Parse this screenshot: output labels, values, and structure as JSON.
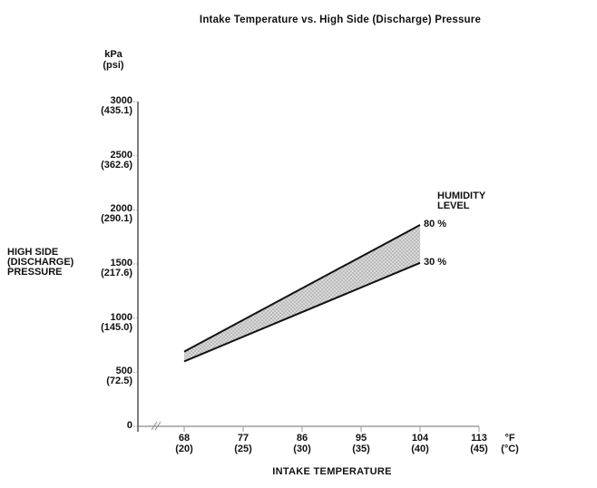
{
  "chart_data": {
    "type": "area",
    "title": "Intake Temperature vs. High Side (Discharge) Pressure",
    "xlabel": "INTAKE TEMPERATURE",
    "ylabel_lines": [
      "HIGH SIDE",
      "(DISCHARGE)",
      "PRESSURE"
    ],
    "y_axis_unit_lines": [
      "kPa",
      "(psi)"
    ],
    "x_axis_unit_lines": [
      "°F",
      "(°C)"
    ],
    "xlim": [
      68,
      113
    ],
    "ylim": [
      0,
      3000
    ],
    "grid": false,
    "axis_break_before_first_x_tick": true,
    "x_ticks": [
      {
        "value": 68,
        "primary": "68",
        "secondary": "(20)"
      },
      {
        "value": 77,
        "primary": "77",
        "secondary": "(25)"
      },
      {
        "value": 86,
        "primary": "86",
        "secondary": "(30)"
      },
      {
        "value": 95,
        "primary": "95",
        "secondary": "(35)"
      },
      {
        "value": 104,
        "primary": "104",
        "secondary": "(40)"
      },
      {
        "value": 113,
        "primary": "113",
        "secondary": "(45)"
      }
    ],
    "y_ticks": [
      {
        "value": 3000,
        "primary": "3000",
        "secondary": "(435.1)"
      },
      {
        "value": 2500,
        "primary": "2500",
        "secondary": "(362.6)"
      },
      {
        "value": 2000,
        "primary": "2000",
        "secondary": "(290.1)"
      },
      {
        "value": 1500,
        "primary": "1500",
        "secondary": "(217.6)"
      },
      {
        "value": 1000,
        "primary": "1000",
        "secondary": "(145.0)"
      },
      {
        "value": 500,
        "primary": "500",
        "secondary": "(72.5)"
      },
      {
        "value": 0,
        "primary": "0",
        "secondary": ""
      }
    ],
    "legend_title_lines": [
      "HUMIDITY",
      "LEVEL"
    ],
    "legend_position": "right-of-line-ends",
    "band_between_series": true,
    "series": [
      {
        "name": "80 %",
        "x": [
          68,
          104
        ],
        "y": [
          690,
          1860
        ]
      },
      {
        "name": "30 %",
        "x": [
          68,
          104
        ],
        "y": [
          600,
          1510
        ]
      }
    ],
    "colors": {
      "line": "#111111",
      "y_axis": "#3a3a3a",
      "x_axis": "#8a8a8a",
      "tick": "#9a9a9a",
      "band_fill": "#d8d8d8",
      "band_dot": "#9a9a9a",
      "text": "#111111",
      "background": "#ffffff"
    }
  }
}
